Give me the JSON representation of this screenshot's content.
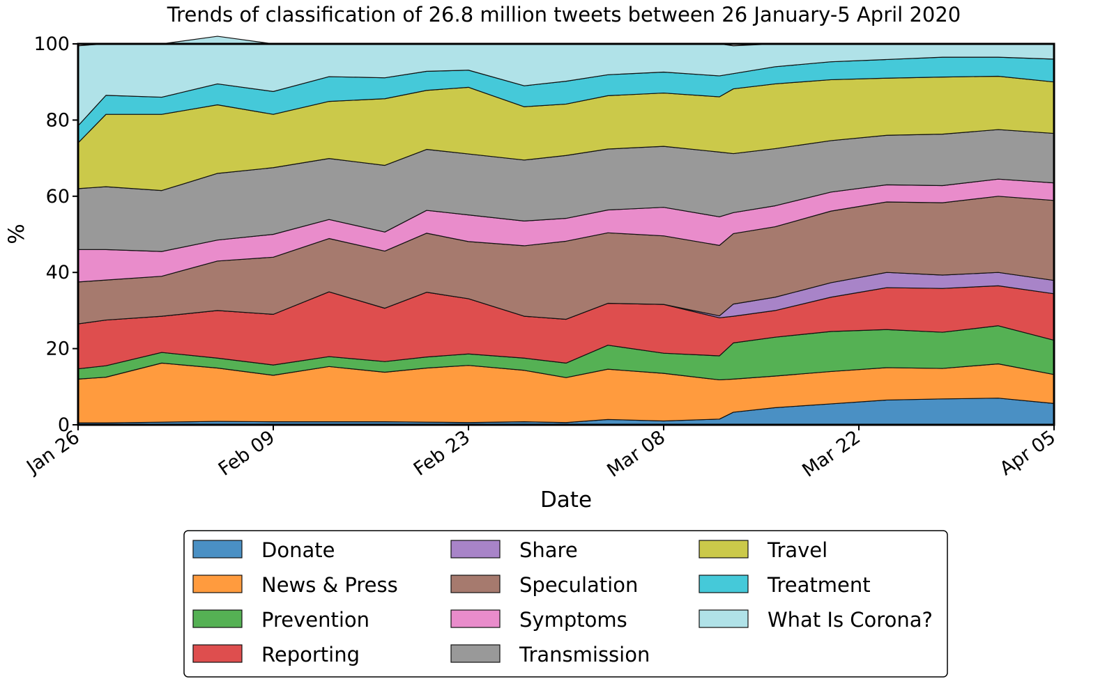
{
  "chart_data": {
    "type": "area",
    "stacked": true,
    "title": "Trends of classification of 26.8 million tweets between 26 January-5 April 2020",
    "xlabel": "Date",
    "ylabel": "%",
    "ylim": [
      0,
      100
    ],
    "xlim": [
      "2020-01-26",
      "2020-04-05"
    ],
    "x_ticks": [
      "Jan 26",
      "Feb 09",
      "Feb 23",
      "Mar 08",
      "Mar 22",
      "Apr 05"
    ],
    "y_ticks": [
      "0",
      "20",
      "40",
      "60",
      "80",
      "100"
    ],
    "x_tick_dates": [
      "2020-01-26",
      "2020-02-09",
      "2020-02-23",
      "2020-03-08",
      "2020-03-22",
      "2020-04-05"
    ],
    "grid": false,
    "legend_position": "bottom-center",
    "x": [
      "2020-01-26",
      "2020-01-28",
      "2020-02-01",
      "2020-02-05",
      "2020-02-09",
      "2020-02-13",
      "2020-02-17",
      "2020-02-20",
      "2020-02-23",
      "2020-02-27",
      "2020-03-01",
      "2020-03-04",
      "2020-03-08",
      "2020-03-12",
      "2020-03-13",
      "2020-03-16",
      "2020-03-20",
      "2020-03-24",
      "2020-03-28",
      "2020-04-01",
      "2020-04-05"
    ],
    "series": [
      {
        "name": "Donate",
        "color": "#4a90c4",
        "values": [
          0.5,
          0.5,
          0.7,
          0.9,
          0.8,
          0.8,
          0.8,
          0.7,
          0.6,
          0.8,
          0.6,
          1.4,
          1.0,
          1.5,
          3.3,
          4.5,
          5.5,
          6.5,
          6.8,
          7.0,
          5.6
        ]
      },
      {
        "name": "News & Press",
        "color": "#ff9b3e",
        "values": [
          11.5,
          12.0,
          15.5,
          14.0,
          12.2,
          14.5,
          13.0,
          14.2,
          15.0,
          13.5,
          11.8,
          13.2,
          12.5,
          10.3,
          8.7,
          8.3,
          8.5,
          8.5,
          8.0,
          9.0,
          7.6
        ]
      },
      {
        "name": "Prevention",
        "color": "#55b154",
        "values": [
          2.7,
          3.0,
          2.8,
          2.6,
          2.7,
          2.6,
          2.8,
          2.9,
          3.0,
          3.2,
          3.8,
          6.3,
          5.3,
          6.3,
          9.5,
          10.2,
          10.5,
          10.0,
          9.5,
          10.0,
          9.0
        ]
      },
      {
        "name": "Reporting",
        "color": "#de4e4e",
        "values": [
          11.8,
          12.0,
          9.5,
          12.5,
          13.3,
          17.0,
          14.0,
          17.0,
          14.5,
          11.0,
          11.5,
          11.0,
          12.8,
          10.0,
          7.0,
          7.0,
          9.0,
          11.0,
          11.5,
          10.5,
          12.2
        ]
      },
      {
        "name": "Share",
        "color": "#a884c8",
        "values": [
          0,
          0,
          0,
          0,
          0,
          0,
          0,
          0,
          0,
          0,
          0,
          0,
          0,
          0.5,
          3.2,
          3.5,
          3.8,
          4.0,
          3.5,
          3.5,
          3.5
        ]
      },
      {
        "name": "Speculation",
        "color": "#a67a6e",
        "values": [
          11.0,
          10.5,
          10.5,
          13.0,
          15.0,
          14.0,
          15.0,
          15.5,
          15.0,
          18.5,
          20.5,
          18.5,
          18.0,
          18.5,
          18.5,
          18.5,
          18.8,
          18.5,
          19.0,
          20.0,
          21.0
        ]
      },
      {
        "name": "Symptoms",
        "color": "#e98ccb",
        "values": [
          8.5,
          8.0,
          6.5,
          5.5,
          6.0,
          5.0,
          5.0,
          6.0,
          7.0,
          6.5,
          6.0,
          6.0,
          7.5,
          7.5,
          5.5,
          5.5,
          5.0,
          4.5,
          4.5,
          4.5,
          4.6
        ]
      },
      {
        "name": "Transmission",
        "color": "#999999",
        "values": [
          16.0,
          16.5,
          16.0,
          17.5,
          17.5,
          16.0,
          17.5,
          16.0,
          16.0,
          16.0,
          16.5,
          16.0,
          16.0,
          17.0,
          15.5,
          15.0,
          13.5,
          13.0,
          13.5,
          13.0,
          13.0
        ]
      },
      {
        "name": "Travel",
        "color": "#cbc94a",
        "values": [
          12.0,
          19.0,
          20.0,
          18.0,
          14.0,
          15.0,
          17.5,
          15.5,
          17.5,
          14.0,
          13.5,
          14.0,
          14.0,
          14.5,
          17.0,
          17.0,
          16.0,
          15.0,
          15.0,
          14.0,
          13.5
        ]
      },
      {
        "name": "Treatment",
        "color": "#45c9d9",
        "values": [
          4.5,
          5.0,
          4.5,
          5.5,
          6.0,
          6.5,
          5.5,
          5.0,
          4.5,
          5.5,
          6.0,
          5.5,
          5.5,
          5.5,
          4.0,
          4.5,
          4.7,
          4.9,
          5.2,
          5.0,
          6.0
        ]
      },
      {
        "name": "What Is Corona?",
        "color": "#b0e2e8",
        "values": [
          21.0,
          13.5,
          14.0,
          12.5,
          12.5,
          8.6,
          8.9,
          7.2,
          6.9,
          11.0,
          9.8,
          8.1,
          7.4,
          8.4,
          7.3,
          6.0,
          4.7,
          4.1,
          3.5,
          3.5,
          4.0
        ]
      }
    ]
  }
}
